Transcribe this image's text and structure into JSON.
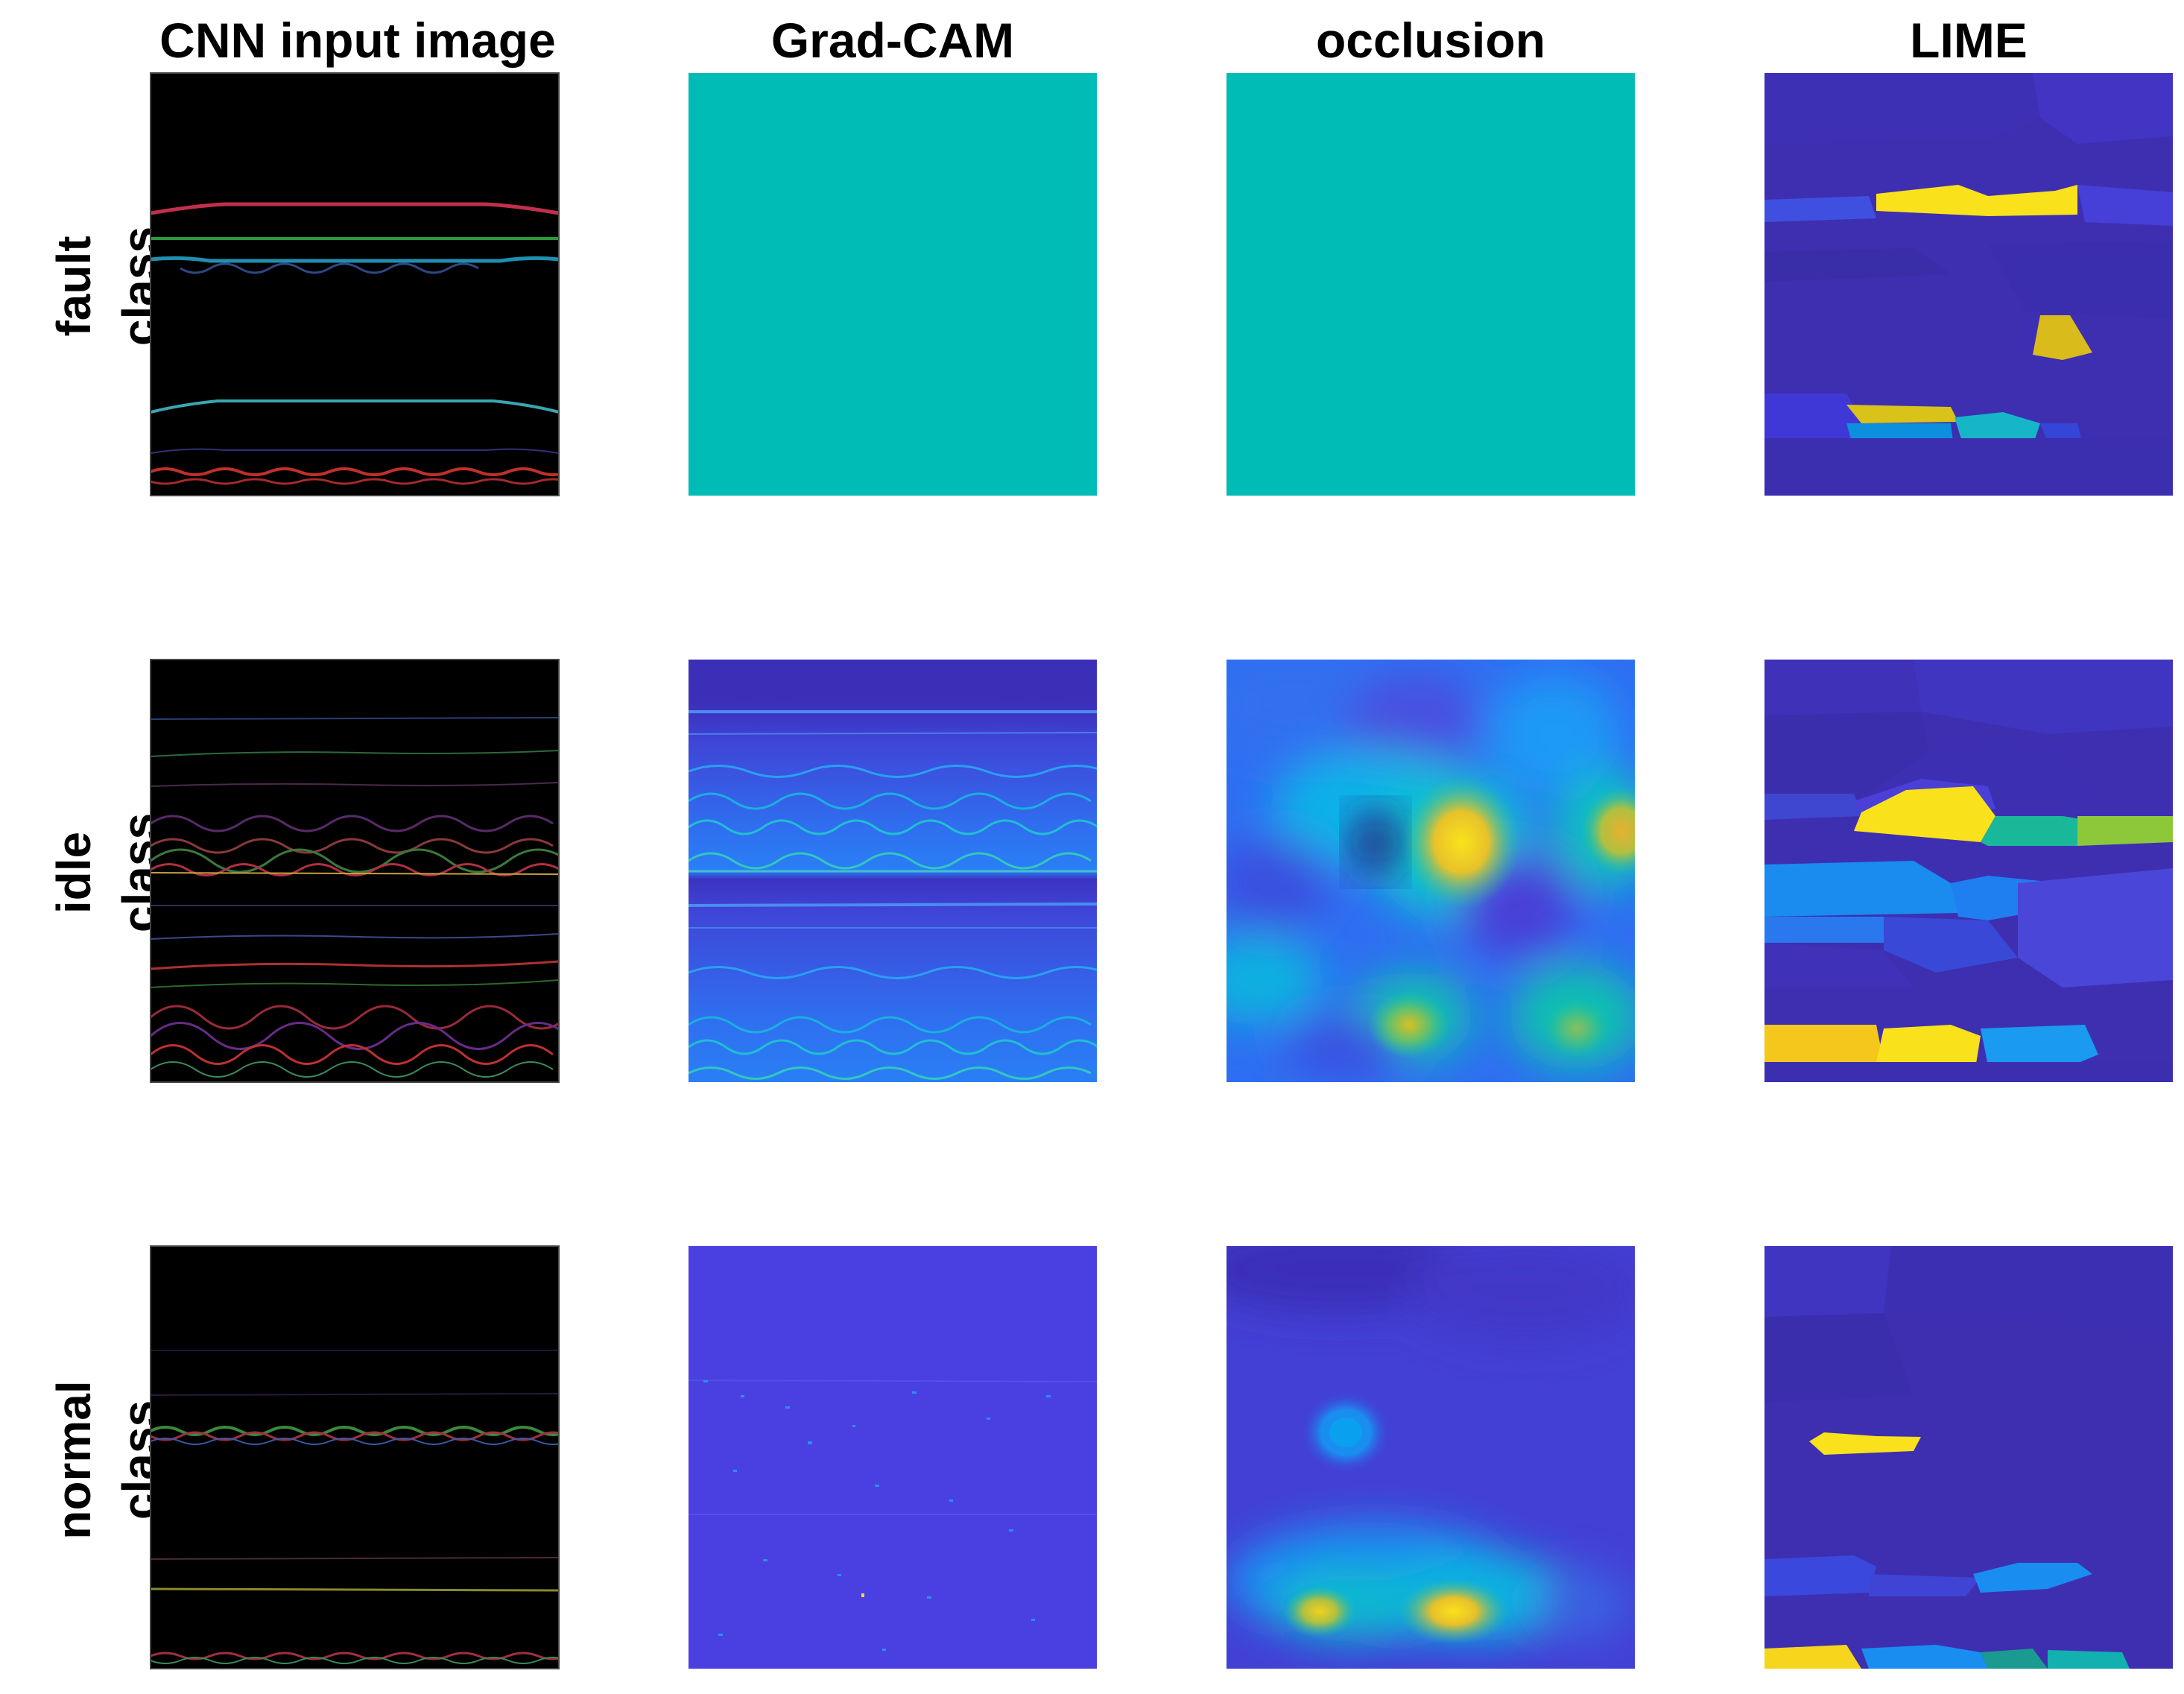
{
  "columns": [
    {
      "title": "CNN input image"
    },
    {
      "title": "Grad-CAM"
    },
    {
      "title": "occlusion"
    },
    {
      "title": "LIME"
    }
  ],
  "rows": [
    {
      "label_line1": "fault",
      "label_line2": "class"
    },
    {
      "label_line1": "idle",
      "label_line2": "class"
    },
    {
      "label_line1": "normal",
      "label_line2": "class"
    }
  ],
  "colors": {
    "background": "#ffffff",
    "parula_dark": "#3d2fb0",
    "parula_blue": "#4639d6",
    "parula_cyan": "#00bcb6",
    "parula_yellow": "#f9e21b",
    "input_bg": "#000000"
  }
}
